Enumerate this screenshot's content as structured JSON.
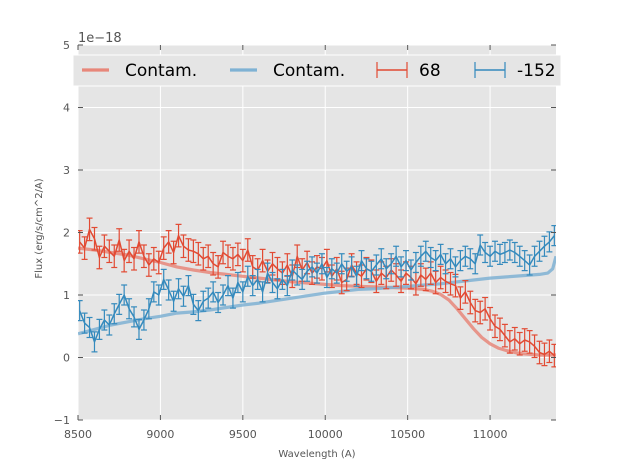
{
  "chart_data": {
    "type": "line",
    "title": "",
    "xlabel": "Wavelength (A)",
    "ylabel": "Flux (erg/s/cm^2/A)",
    "y_offset_label": "1e−18",
    "xlim": [
      8500,
      11400
    ],
    "ylim": [
      -1,
      5
    ],
    "xticks": [
      8500,
      9000,
      9500,
      10000,
      10500,
      11000
    ],
    "xtick_labels": [
      "8500",
      "9000",
      "9500",
      "10000",
      "10500",
      "11000"
    ],
    "yticks": [
      -1,
      0,
      1,
      2,
      3,
      4,
      5
    ],
    "ytick_labels": [
      "−1",
      "0",
      "1",
      "2",
      "3",
      "4",
      "5"
    ],
    "grid": true,
    "legend_position": "top",
    "legend": [
      {
        "label": "Contam.",
        "kind": "line",
        "series": "contam_68"
      },
      {
        "label": "Contam.",
        "kind": "line",
        "series": "contam_-152"
      },
      {
        "label": "68",
        "kind": "errorbar",
        "series": "spec_68"
      },
      {
        "label": "-152",
        "kind": "errorbar",
        "series": "spec_-152"
      }
    ],
    "colors": {
      "red": "#E24A33",
      "blue": "#348ABD",
      "red_contam": "#E8877A",
      "blue_contam": "#7FB2D4",
      "background": "#E5E5E5",
      "grid": "#FFFFFF"
    },
    "series": [
      {
        "name": "contam_68",
        "label": "Contam.",
        "color": "#E8877A",
        "x": [
          8500,
          8600,
          8700,
          8800,
          8900,
          9000,
          9100,
          9200,
          9300,
          9400,
          9500,
          9600,
          9700,
          9800,
          9900,
          10000,
          10100,
          10200,
          10300,
          10400,
          10500,
          10600,
          10650,
          10700,
          10750,
          10800,
          10850,
          10900,
          10950,
          11000,
          11050,
          11100,
          11150,
          11200,
          11250,
          11300,
          11350,
          11400
        ],
        "y": [
          1.75,
          1.72,
          1.68,
          1.64,
          1.58,
          1.52,
          1.45,
          1.4,
          1.36,
          1.33,
          1.3,
          1.27,
          1.24,
          1.21,
          1.19,
          1.17,
          1.15,
          1.14,
          1.13,
          1.12,
          1.11,
          1.09,
          1.06,
          1.01,
          0.92,
          0.78,
          0.62,
          0.46,
          0.32,
          0.22,
          0.15,
          0.11,
          0.08,
          0.06,
          0.05,
          0.04,
          0.04,
          0.04
        ]
      },
      {
        "name": "contam_-152",
        "label": "Contam.",
        "color": "#7FB2D4",
        "x": [
          8500,
          8600,
          8700,
          8800,
          8900,
          9000,
          9100,
          9200,
          9300,
          9400,
          9500,
          9600,
          9700,
          9800,
          9900,
          10000,
          10100,
          10200,
          10300,
          10400,
          10500,
          10600,
          10700,
          10800,
          10900,
          11000,
          11100,
          11200,
          11300,
          11350,
          11380,
          11400
        ],
        "y": [
          0.38,
          0.45,
          0.52,
          0.57,
          0.62,
          0.66,
          0.71,
          0.73,
          0.76,
          0.8,
          0.84,
          0.87,
          0.91,
          0.95,
          0.99,
          1.03,
          1.06,
          1.09,
          1.1,
          1.12,
          1.14,
          1.16,
          1.18,
          1.21,
          1.24,
          1.27,
          1.29,
          1.31,
          1.33,
          1.35,
          1.42,
          1.62
        ]
      },
      {
        "name": "spec_68",
        "label": "68",
        "color": "#E24A33",
        "x": [
          8510,
          8540,
          8570,
          8600,
          8630,
          8660,
          8690,
          8720,
          8750,
          8780,
          8810,
          8840,
          8870,
          8900,
          8930,
          8960,
          8990,
          9020,
          9050,
          9080,
          9110,
          9140,
          9170,
          9200,
          9230,
          9260,
          9290,
          9320,
          9350,
          9380,
          9410,
          9440,
          9470,
          9500,
          9530,
          9560,
          9590,
          9620,
          9650,
          9680,
          9710,
          9740,
          9770,
          9800,
          9830,
          9860,
          9890,
          9920,
          9950,
          9980,
          10010,
          10040,
          10070,
          10100,
          10130,
          10160,
          10190,
          10220,
          10250,
          10280,
          10310,
          10340,
          10370,
          10400,
          10430,
          10460,
          10490,
          10520,
          10550,
          10580,
          10610,
          10640,
          10670,
          10700,
          10730,
          10760,
          10790,
          10820,
          10850,
          10880,
          10910,
          10940,
          10970,
          11000,
          11030,
          11060,
          11090,
          11120,
          11150,
          11180,
          11210,
          11240,
          11270,
          11300,
          11330,
          11360,
          11390
        ],
        "y": [
          1.85,
          1.75,
          2.05,
          1.9,
          1.6,
          1.78,
          1.7,
          1.62,
          1.88,
          1.55,
          1.7,
          1.58,
          1.85,
          1.62,
          1.48,
          1.58,
          1.52,
          1.75,
          1.85,
          1.68,
          1.95,
          1.78,
          1.72,
          1.7,
          1.66,
          1.58,
          1.62,
          1.5,
          1.45,
          1.68,
          1.62,
          1.58,
          1.65,
          1.55,
          1.72,
          1.45,
          1.4,
          1.55,
          1.38,
          1.5,
          1.42,
          1.35,
          1.48,
          1.3,
          1.62,
          1.4,
          1.52,
          1.35,
          1.45,
          1.42,
          1.55,
          1.3,
          1.42,
          1.2,
          1.25,
          1.48,
          1.35,
          1.3,
          1.42,
          1.38,
          1.22,
          1.35,
          1.28,
          1.4,
          1.32,
          1.22,
          1.35,
          1.28,
          1.18,
          1.32,
          1.25,
          1.35,
          1.2,
          1.28,
          1.22,
          1.18,
          1.15,
          0.95,
          1.05,
          0.88,
          0.75,
          0.72,
          0.78,
          0.62,
          0.5,
          0.45,
          0.35,
          0.25,
          0.3,
          0.22,
          0.28,
          0.25,
          0.18,
          0.08,
          0.05,
          0.1,
          0.03
        ],
        "err": 0.18
      },
      {
        "name": "spec_-152",
        "label": "-152",
        "color": "#348ABD",
        "x": [
          8510,
          8540,
          8570,
          8600,
          8630,
          8660,
          8690,
          8720,
          8750,
          8780,
          8810,
          8840,
          8870,
          8900,
          8930,
          8960,
          8990,
          9020,
          9050,
          9080,
          9110,
          9140,
          9170,
          9200,
          9230,
          9260,
          9290,
          9320,
          9350,
          9380,
          9410,
          9440,
          9470,
          9500,
          9530,
          9560,
          9590,
          9620,
          9650,
          9680,
          9710,
          9740,
          9770,
          9800,
          9830,
          9860,
          9890,
          9920,
          9950,
          9980,
          10010,
          10040,
          10070,
          10100,
          10130,
          10160,
          10190,
          10220,
          10250,
          10280,
          10310,
          10340,
          10370,
          10400,
          10430,
          10460,
          10490,
          10520,
          10550,
          10580,
          10610,
          10640,
          10670,
          10700,
          10730,
          10760,
          10790,
          10820,
          10850,
          10880,
          10910,
          10940,
          10970,
          11000,
          11030,
          11060,
          11090,
          11120,
          11150,
          11180,
          11210,
          11240,
          11270,
          11300,
          11330,
          11360,
          11390
        ],
        "y": [
          0.75,
          0.55,
          0.48,
          0.25,
          0.45,
          0.6,
          0.52,
          0.7,
          0.85,
          1.0,
          0.78,
          0.65,
          0.45,
          0.6,
          0.78,
          1.05,
          1.0,
          1.25,
          1.08,
          0.9,
          1.1,
          0.98,
          1.15,
          0.85,
          0.75,
          0.9,
          0.95,
          1.05,
          0.88,
          1.0,
          1.15,
          0.95,
          1.2,
          1.05,
          1.3,
          1.15,
          1.25,
          1.05,
          1.35,
          1.2,
          1.1,
          1.25,
          1.15,
          1.4,
          1.32,
          1.25,
          1.38,
          1.45,
          1.35,
          1.5,
          1.28,
          1.42,
          1.35,
          1.5,
          1.38,
          1.45,
          1.3,
          1.55,
          1.42,
          1.38,
          1.48,
          1.58,
          1.42,
          1.5,
          1.62,
          1.45,
          1.55,
          1.4,
          1.52,
          1.62,
          1.7,
          1.6,
          1.55,
          1.65,
          1.5,
          1.58,
          1.45,
          1.55,
          1.62,
          1.58,
          1.5,
          1.8,
          1.68,
          1.62,
          1.7,
          1.65,
          1.68,
          1.72,
          1.68,
          1.62,
          1.55,
          1.48,
          1.62,
          1.7,
          1.78,
          1.85,
          1.95
        ],
        "err": 0.16
      }
    ]
  }
}
